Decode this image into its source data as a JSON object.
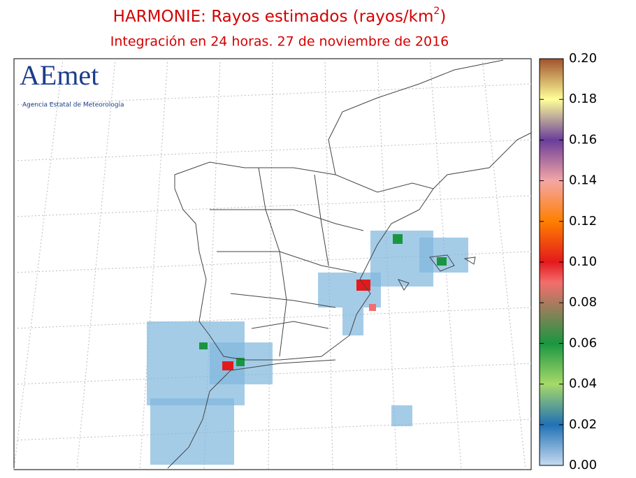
{
  "header": {
    "title": "HARMONIE: Rayos estimados (rayos/km",
    "title_superscript": "2",
    "title_end": ")",
    "subtitle": "Integración en 24 horas. 27 de noviembre de 2016"
  },
  "logo": {
    "name": "AEmet",
    "caption": "Agencia Estatal de Meteorología"
  },
  "colorbar": {
    "lim": [
      0,
      0.2
    ],
    "ticks": [
      {
        "value": 0,
        "label": "0.00"
      },
      {
        "value": 0.02,
        "label": "0.02"
      },
      {
        "value": 0.04,
        "label": "0.04"
      },
      {
        "value": 0.06,
        "label": "0.06"
      },
      {
        "value": 0.08,
        "label": "0.08"
      },
      {
        "value": 0.1,
        "label": "0.10"
      },
      {
        "value": 0.12,
        "label": "0.12"
      },
      {
        "value": 0.14,
        "label": "0.14"
      },
      {
        "value": 0.16,
        "label": "0.16"
      },
      {
        "value": 0.18,
        "label": "0.18"
      },
      {
        "value": 0.2,
        "label": "0.20"
      }
    ]
  }
}
